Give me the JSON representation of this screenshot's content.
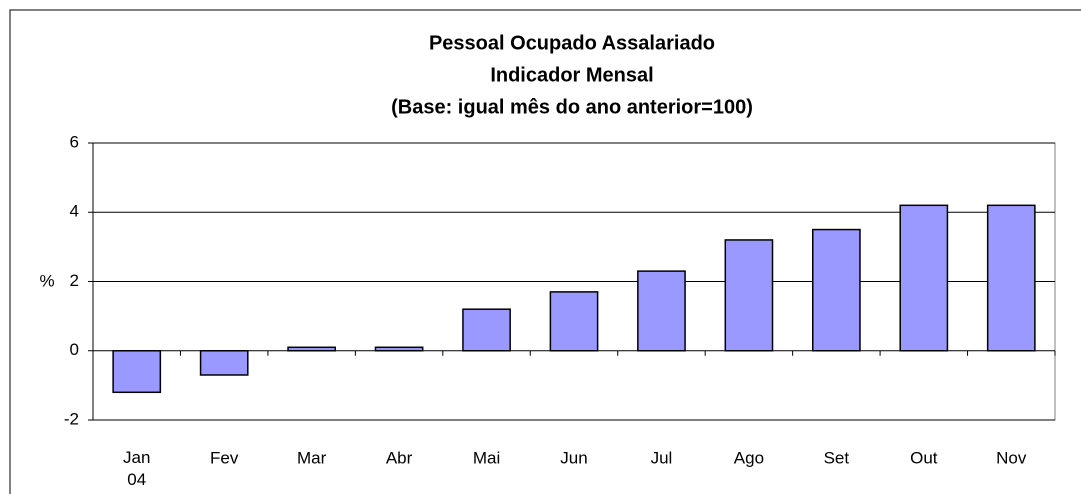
{
  "chart_data": {
    "type": "bar",
    "title": [
      "Pessoal Ocupado Assalariado",
      "Indicador Mensal",
      "(Base: igual mês do ano anterior=100)"
    ],
    "y_label": "%",
    "categories": [
      "Jan\n04",
      "Fev",
      "Mar",
      "Abr",
      "Mai",
      "Jun",
      "Jul",
      "Ago",
      "Set",
      "Out",
      "Nov"
    ],
    "values": [
      -1.2,
      -0.7,
      0.1,
      0.1,
      1.2,
      1.7,
      2.3,
      3.2,
      3.5,
      4.2,
      4.2
    ],
    "color": "#9999ff",
    "ylim": [
      -2,
      6
    ],
    "yticks": [
      -2,
      0,
      2,
      4,
      6
    ],
    "grid": true
  }
}
